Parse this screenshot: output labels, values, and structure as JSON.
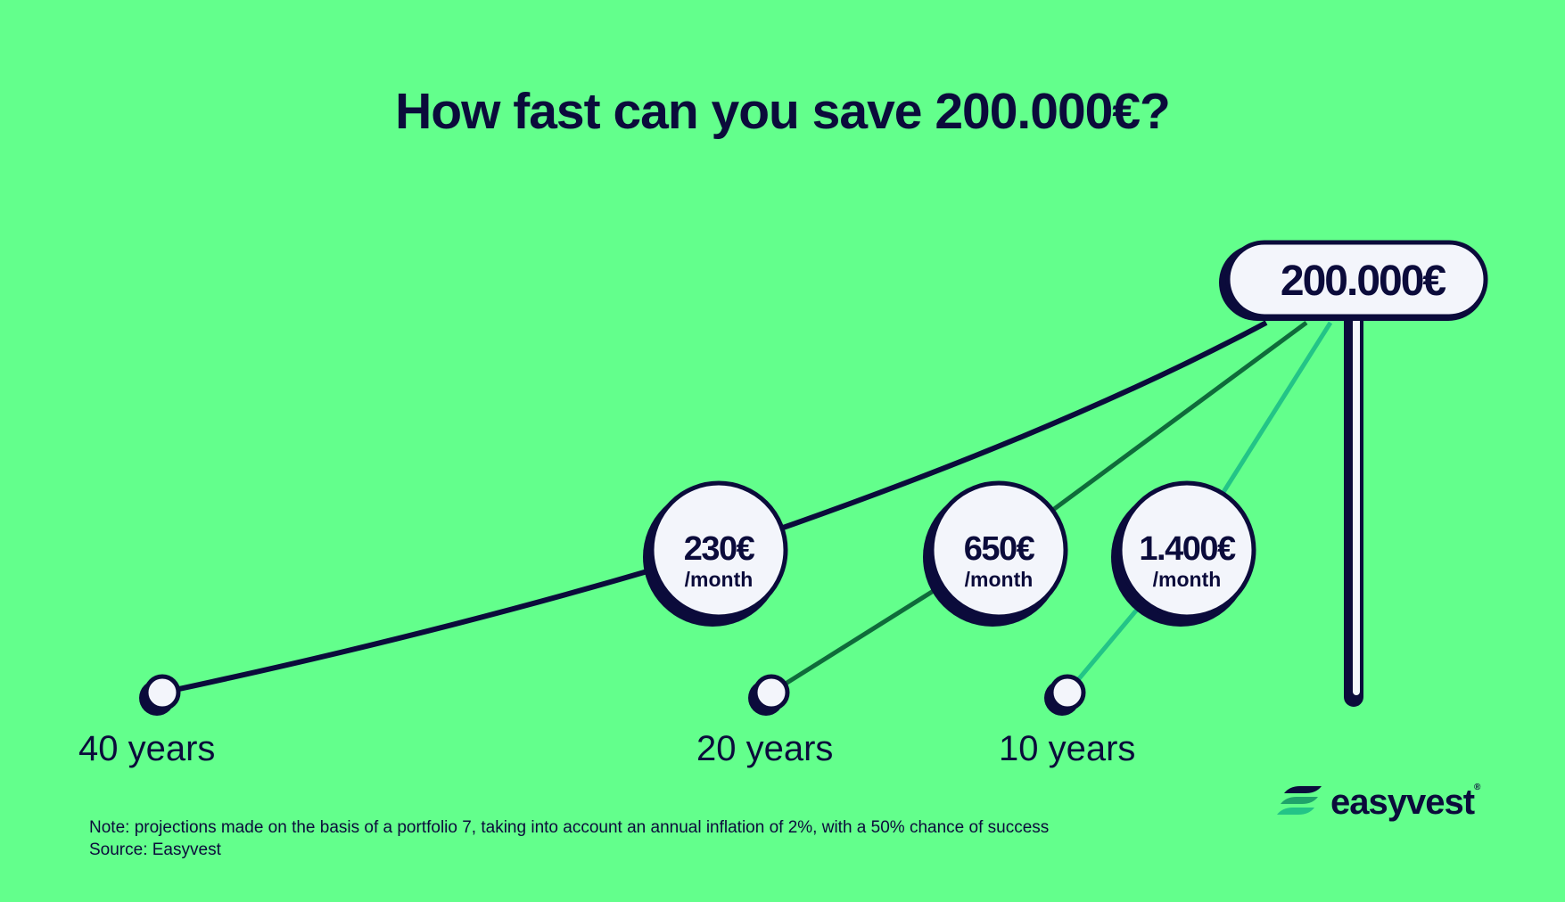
{
  "title": "How fast can you save 200.000€?",
  "note": "Note: projections made on the basis of a portfolio 7, taking into account an annual inflation of 2%, with a 50% chance of success",
  "source": "Source: Easyvest",
  "logo": {
    "text": "easyvest",
    "registered": "®"
  },
  "colors": {
    "background": "#63ff8c",
    "navy": "#0b0b3b",
    "bubble": "#f3f5fb",
    "line_40": "#0b0b3b",
    "line_20": "#0f6b3a",
    "line_10": "#23c487"
  },
  "chart_data": {
    "type": "line",
    "title": "How fast can you save 200.000€?",
    "target": {
      "label": "200.000€",
      "value": 200000
    },
    "series": [
      {
        "years": 40,
        "x_label": "40 years",
        "monthly": 230,
        "amount_label": "230€",
        "unit_label": "/month"
      },
      {
        "years": 20,
        "x_label": "20 years",
        "monthly": 650,
        "amount_label": "650€",
        "unit_label": "/month"
      },
      {
        "years": 10,
        "x_label": "10 years",
        "monthly": 1400,
        "amount_label": "1.400€",
        "unit_label": "/month"
      }
    ]
  }
}
